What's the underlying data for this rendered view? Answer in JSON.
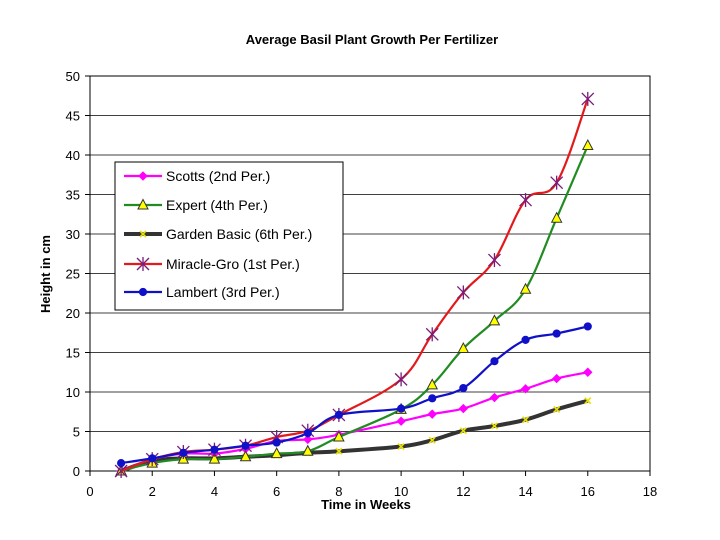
{
  "chart_data": {
    "type": "line",
    "title": "Average Basil Plant Growth Per Fertilizer",
    "xlabel": "Time in Weeks",
    "ylabel": "Height in cm",
    "xlim": [
      0,
      18
    ],
    "ylim": [
      0,
      50
    ],
    "xticks": [
      "0",
      "2",
      "4",
      "6",
      "8",
      "10",
      "12",
      "14",
      "16",
      "18"
    ],
    "yticks": [
      "0",
      "5",
      "10",
      "15",
      "20",
      "25",
      "30",
      "35",
      "40",
      "45",
      "50"
    ],
    "x": [
      1,
      2,
      3,
      4,
      5,
      6,
      7,
      8,
      10,
      11,
      12,
      13,
      14,
      15,
      16
    ],
    "legend_position": "upper-left",
    "series": [
      {
        "name": "Scotts (2nd Per.)",
        "color": "#ff00ff",
        "marker": "diamond",
        "values": [
          0,
          1.5,
          2.2,
          2.2,
          2.8,
          3.8,
          4.0,
          4.6,
          6.3,
          7.2,
          7.9,
          9.3,
          10.4,
          11.7,
          12.5
        ]
      },
      {
        "name": "Expert (4th Per.)",
        "color": "#228b22",
        "marker": "triangle",
        "values": [
          0,
          1.0,
          1.5,
          1.5,
          1.8,
          2.2,
          2.5,
          4.3,
          7.8,
          10.9,
          15.5,
          19.0,
          23.0,
          32.0,
          41.2
        ]
      },
      {
        "name": "Garden Basic (6th Per.)",
        "color": "#333333",
        "marker": "x",
        "values": [
          0,
          1.3,
          1.6,
          1.6,
          1.8,
          2.0,
          2.3,
          2.5,
          3.1,
          3.9,
          5.1,
          5.7,
          6.5,
          7.8,
          8.9
        ]
      },
      {
        "name": "Miracle-Gro (1st Per.)",
        "color": "#e31a1c",
        "marker": "star",
        "values": [
          0,
          1.5,
          2.4,
          2.7,
          3.2,
          4.3,
          5.1,
          7.1,
          11.6,
          17.3,
          22.6,
          26.7,
          34.3,
          36.5,
          47.1
        ]
      },
      {
        "name": "Lambert (3rd Per.)",
        "color": "#1010c8",
        "marker": "circle",
        "values": [
          1.0,
          1.6,
          2.3,
          2.7,
          3.2,
          3.6,
          4.8,
          7.1,
          7.9,
          9.2,
          10.5,
          13.9,
          16.6,
          17.4,
          18.3
        ]
      }
    ]
  }
}
